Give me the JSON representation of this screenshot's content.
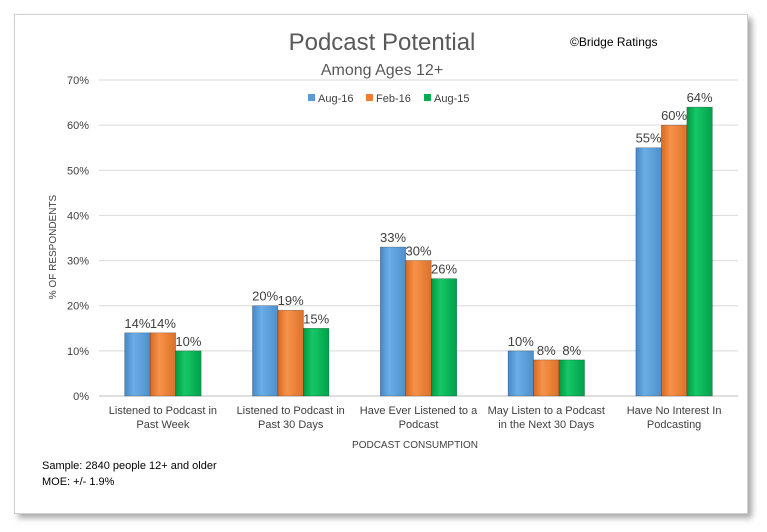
{
  "chart_data": {
    "type": "bar",
    "title": "Podcast Potential",
    "subtitle": "Among Ages 12+",
    "copyright": "©Bridge Ratings",
    "xlabel": "PODCAST CONSUMPTION",
    "ylabel": "% OF RESPONDENTS",
    "ylim": [
      0,
      70
    ],
    "yticks": [
      "0%",
      "10%",
      "20%",
      "30%",
      "40%",
      "50%",
      "60%",
      "70%"
    ],
    "grid": true,
    "legend_position": "top",
    "categories": [
      [
        "Listened to Podcast in",
        "Past Week"
      ],
      [
        "Listened to Podcast in",
        "Past 30 Days"
      ],
      [
        "Have Ever Listened to a",
        "Podcast"
      ],
      [
        "May Listen to a Podcast",
        "in the Next 30 Days"
      ],
      [
        "Have No Interest In",
        "Podcasting"
      ]
    ],
    "series": [
      {
        "name": "Aug-16",
        "color": "#5b9bd5",
        "values": [
          14,
          20,
          33,
          10,
          55
        ],
        "labels": [
          "14%",
          "20%",
          "33%",
          "10%",
          "55%"
        ]
      },
      {
        "name": "Feb-16",
        "color": "#ed7d31",
        "values": [
          14,
          19,
          30,
          8,
          60
        ],
        "labels": [
          "14%",
          "19%",
          "30%",
          "8%",
          "60%"
        ]
      },
      {
        "name": "Aug-15",
        "color": "#00b050",
        "values": [
          10,
          15,
          26,
          8,
          64
        ],
        "labels": [
          "10%",
          "15%",
          "26%",
          "8%",
          "64%"
        ]
      }
    ]
  },
  "footnotes": {
    "sample": "Sample: 2840 people 12+ and older",
    "moe": "MOE: +/- 1.9%"
  }
}
